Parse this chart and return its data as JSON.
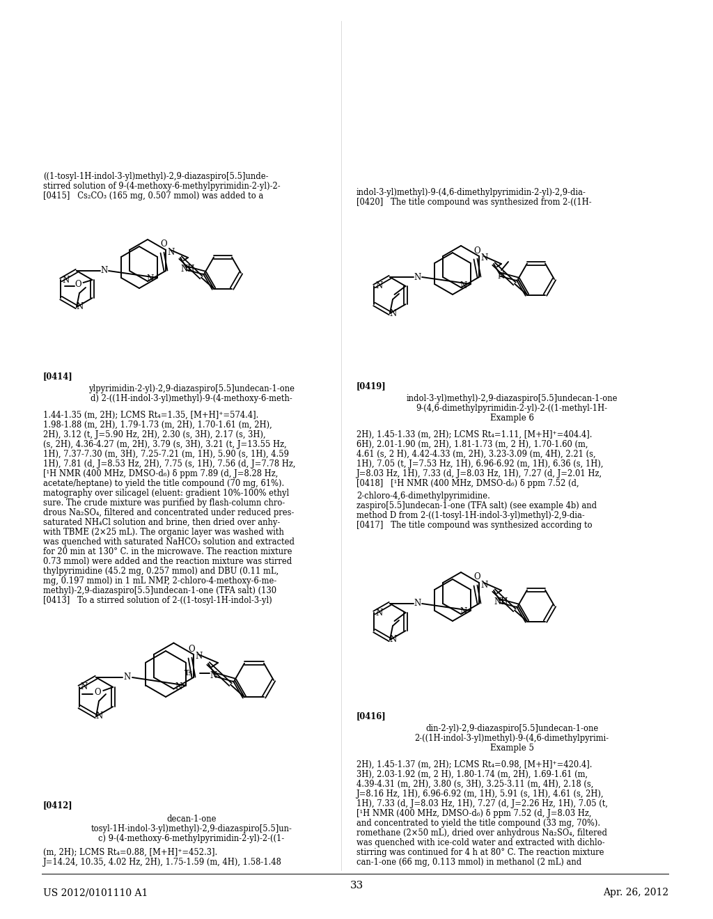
{
  "page_width": 10.24,
  "page_height": 13.2,
  "dpi": 100,
  "bg_color": "#ffffff",
  "header_left": "US 2012/0101110 A1",
  "header_right": "Apr. 26, 2012",
  "page_number": "33"
}
